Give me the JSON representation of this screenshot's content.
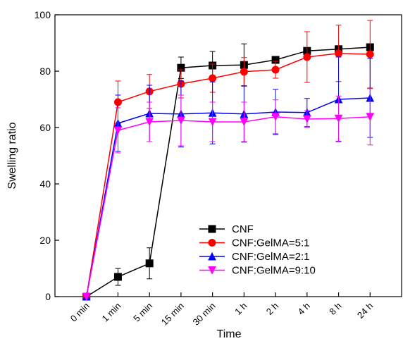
{
  "chart_data": {
    "type": "line",
    "x_label": "Time",
    "y_label": "Swelling ratio",
    "categories": [
      "0 min",
      "1 min",
      "5 min",
      "15 min",
      "30 min",
      "1 h",
      "2 h",
      "4 h",
      "8 h",
      "24 h"
    ],
    "ylim": [
      0,
      100
    ],
    "yticks": [
      0,
      20,
      40,
      60,
      80,
      100
    ],
    "legend": "lower right",
    "series": [
      {
        "name": "CNF",
        "color": "#000000",
        "marker": "square",
        "values": [
          0,
          7,
          11.8,
          81.2,
          82,
          82.2,
          84,
          87.2,
          87.8,
          88.5
        ],
        "errors": [
          0,
          3,
          5.5,
          3.8,
          5,
          7.5,
          0.5,
          0.5,
          0.5,
          0.5
        ]
      },
      {
        "name": "CNF:GelMA=5:1",
        "color": "#ff0000",
        "marker": "circle",
        "values": [
          0,
          69,
          72.8,
          75.5,
          77.5,
          79.8,
          80.5,
          85,
          86.3,
          86
        ],
        "errors": [
          0,
          7.5,
          6,
          5,
          5,
          5,
          3,
          9,
          10,
          12
        ]
      },
      {
        "name": "CNF:GelMA=2:1",
        "color": "#0000ff",
        "marker": "triangle-up",
        "values": [
          0,
          61.5,
          65,
          64.8,
          65.2,
          64.8,
          65.5,
          65.3,
          70,
          70.5
        ],
        "errors": [
          0,
          10,
          10,
          11.7,
          11,
          10,
          8,
          5,
          15,
          14
        ]
      },
      {
        "name": "CNF:GelMA=9:10",
        "color": "#ff00ff",
        "marker": "triangle-down",
        "values": [
          0,
          59,
          62,
          62.5,
          62,
          62,
          63.8,
          63,
          63.2,
          63.8
        ],
        "errors": [
          0,
          8,
          7,
          9,
          7,
          7,
          6,
          3,
          8,
          10
        ]
      }
    ]
  }
}
